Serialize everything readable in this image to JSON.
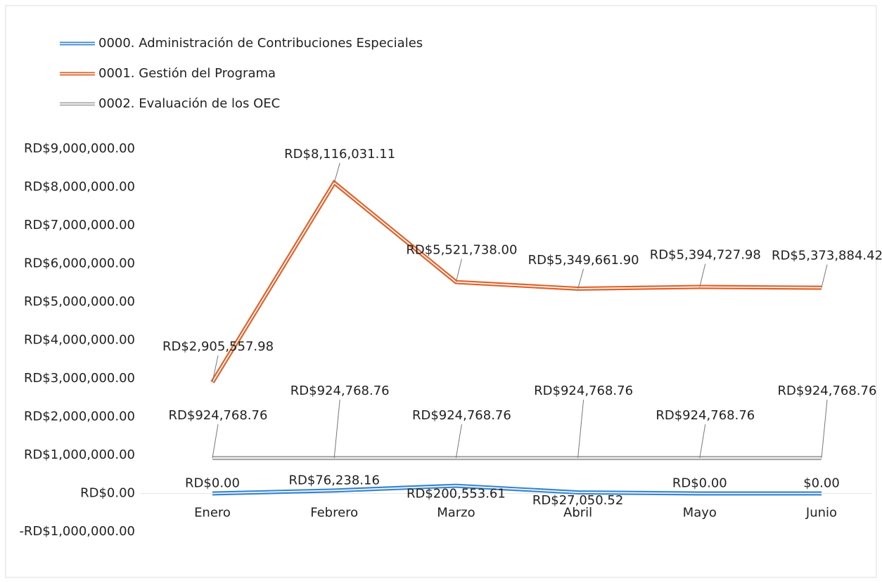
{
  "chart_data": {
    "type": "line",
    "categories": [
      "Enero",
      "Febrero",
      "Marzo",
      "Abril",
      "Mayo",
      "Junio"
    ],
    "series": [
      {
        "name": "0000. Administración de Contribuciones Especiales",
        "color": "#3a86d0",
        "values": [
          0,
          76238.16,
          200553.61,
          27050.52,
          0,
          0
        ],
        "value_labels": [
          "RD$0.00",
          "RD$76,238.16",
          "RD$200,553.61",
          "RD$27,050.52",
          "RD$0.00",
          "$0.00"
        ]
      },
      {
        "name": "0001. Gestión del Programa",
        "color": "#e0622a",
        "values": [
          2905557.98,
          8116031.11,
          5521738.0,
          5349661.9,
          5394727.98,
          5373884.42
        ],
        "value_labels": [
          "RD$2,905,557.98",
          "RD$8,116,031.11",
          "RD$5,521,738.00",
          "RD$5,349,661.90",
          "RD$5,394,727.98",
          "RD$5,373,884.42"
        ]
      },
      {
        "name": "0002. Evaluación de los OEC",
        "color": "#a8a8a8",
        "values": [
          924768.76,
          924768.76,
          924768.76,
          924768.76,
          924768.76,
          924768.76
        ],
        "value_labels": [
          "RD$924,768.76",
          "RD$924,768.76",
          "RD$924,768.76",
          "RD$924,768.76",
          "RD$924,768.76",
          "RD$924,768.76"
        ]
      }
    ],
    "ylim": [
      -1000000,
      9000000
    ],
    "yticks": [
      {
        "value": -1000000,
        "label": "-RD$1,000,000.00"
      },
      {
        "value": 0,
        "label": "RD$0.00"
      },
      {
        "value": 1000000,
        "label": "RD$1,000,000.00"
      },
      {
        "value": 2000000,
        "label": "RD$2,000,000.00"
      },
      {
        "value": 3000000,
        "label": "RD$3,000,000.00"
      },
      {
        "value": 4000000,
        "label": "RD$4,000,000.00"
      },
      {
        "value": 5000000,
        "label": "RD$5,000,000.00"
      },
      {
        "value": 6000000,
        "label": "RD$6,000,000.00"
      },
      {
        "value": 7000000,
        "label": "RD$7,000,000.00"
      },
      {
        "value": 8000000,
        "label": "RD$8,000,000.00"
      },
      {
        "value": 9000000,
        "label": "RD$9,000,000.00"
      }
    ],
    "grid": false,
    "legend": "top-left"
  }
}
